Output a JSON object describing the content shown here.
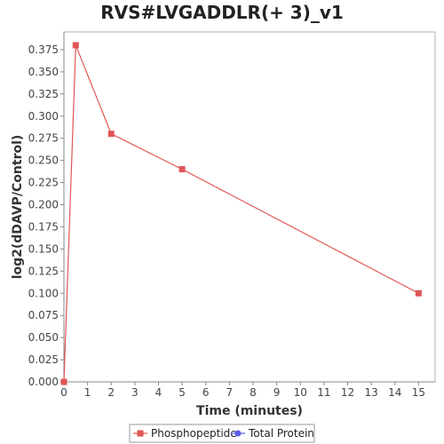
{
  "chart_data": {
    "type": "line",
    "title": "RVS#LVGADDLR(+ 3)_v1",
    "xlabel": "Time (minutes)",
    "ylabel": "log2(dDAVP/Control)",
    "xlim": [
      0,
      15.7
    ],
    "ylim": [
      0,
      0.395
    ],
    "x_ticks": [
      0,
      1,
      2,
      3,
      4,
      5,
      6,
      7,
      8,
      9,
      10,
      11,
      12,
      13,
      14,
      15
    ],
    "y_ticks": [
      0.0,
      0.025,
      0.05,
      0.075,
      0.1,
      0.125,
      0.15,
      0.175,
      0.2,
      0.225,
      0.25,
      0.275,
      0.3,
      0.325,
      0.35,
      0.375
    ],
    "grid": false,
    "legend_position": "bottom-center",
    "series": [
      {
        "name": "Phosphopeptide",
        "color": "#e05555",
        "marker": "square",
        "points": [
          {
            "x": 0,
            "y": 0.0
          },
          {
            "x": 0.5,
            "y": 0.38
          },
          {
            "x": 2,
            "y": 0.28
          },
          {
            "x": 5,
            "y": 0.24
          },
          {
            "x": 15,
            "y": 0.1
          }
        ]
      },
      {
        "name": "Total Protein",
        "color": "#5a5ae6",
        "marker": "circle",
        "points": []
      }
    ]
  }
}
